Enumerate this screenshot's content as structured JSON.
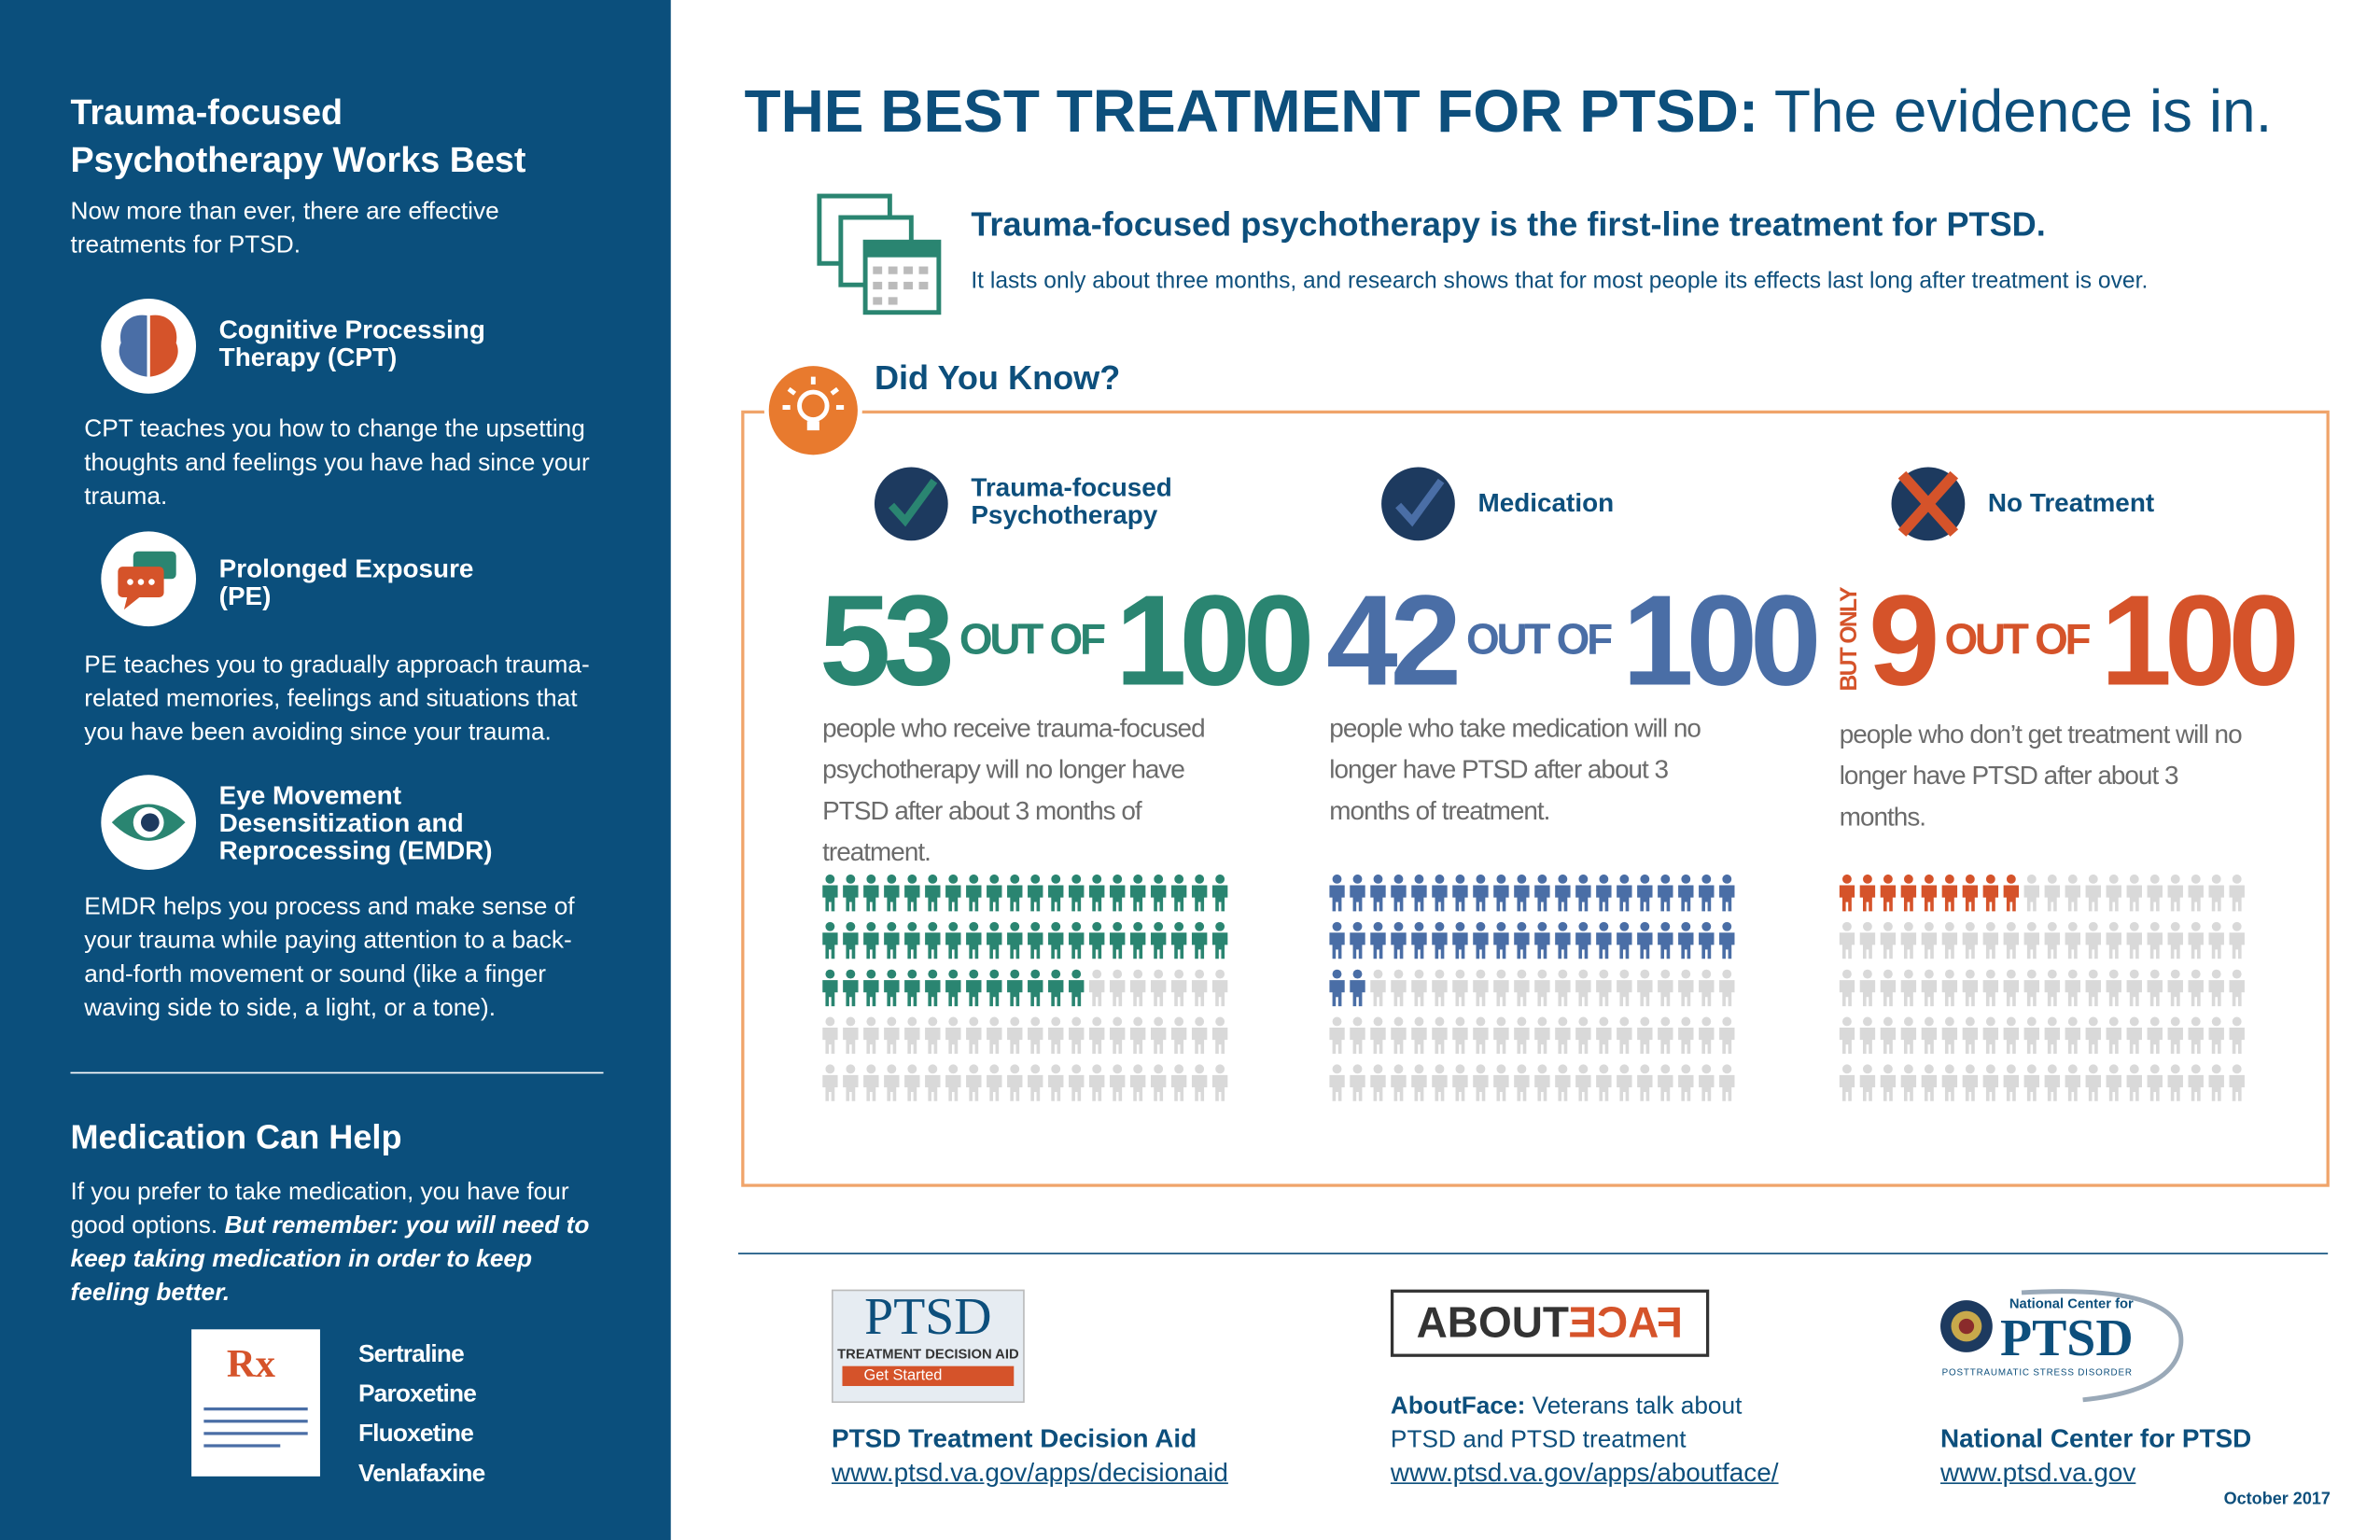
{
  "sidebar": {
    "title": "Trauma-focused Psychotherapy Works Best",
    "intro": "Now more than ever, there are effective treatments for PTSD.",
    "therapies": [
      {
        "name": "Cognitive Processing Therapy (CPT)",
        "description": "CPT teaches you how to change the upsetting thoughts and feelings you have had since your trauma."
      },
      {
        "name": "Prolonged Exposure (PE)",
        "description": "PE teaches you to gradually approach trauma-related memories, feelings and situations that you have been avoiding since your trauma."
      },
      {
        "name": "Eye Movement Desensitization and Reprocessing (EMDR)",
        "description": "EMDR helps you process and make sense of your trauma while paying attention to a back-and-forth movement or sound (like a finger waving side to side, a light, or a tone)."
      }
    ],
    "medication": {
      "title": "Medication Can Help",
      "text": "If you prefer to take medication, you have four good options.",
      "emphasis": "But remember: you will need to keep taking medication in order to keep feeling better.",
      "icon": "Rx",
      "drugs": [
        "Sertraline",
        "Paroxetine",
        "Fluoxetine",
        "Venlafaxine"
      ]
    }
  },
  "header": {
    "title_bold": "THE BEST TREATMENT FOR PTSD:",
    "title_rest": "The evidence is in.",
    "subtitle": "Trauma-focused psychotherapy is the first-line treatment for PTSD.",
    "text": "It lasts only about three months, and research shows that for most people its effects last long after treatment is over."
  },
  "did_you_know": {
    "title": "Did You Know?",
    "stats": [
      {
        "label": "Trauma-focused Psychotherapy",
        "value": 53,
        "out_of": "OUT OF",
        "total": 100,
        "color": "#2a8571",
        "description": "people who receive trauma-focused psychotherapy will no longer have PTSD after about 3 months of treatment."
      },
      {
        "label": "Medication",
        "value": 42,
        "out_of": "OUT OF",
        "total": 100,
        "color": "#4a6ea6",
        "description": "people who take medication will no longer have PTSD after about 3 months of treatment."
      },
      {
        "label": "No Treatment",
        "prefix": "BUT ONLY",
        "value": 9,
        "out_of": "OUT OF",
        "total": 100,
        "color": "#d5532a",
        "description": "people who don’t get treatment will no longer have PTSD after about 3 months."
      }
    ]
  },
  "footer": {
    "resources": [
      {
        "logo": "PTSD",
        "logo_sub": "TREATMENT DECISION AID",
        "button": "Get Started",
        "name": "PTSD Treatment Decision Aid",
        "url": "www.ptsd.va.gov/apps/decisionaid"
      },
      {
        "logo_left": "ABOUT",
        "logo_right": "FACE",
        "name_bold": "AboutFace:",
        "name": "Veterans talk about PTSD and PTSD treatment",
        "url": "www.ptsd.va.gov/apps/aboutface/"
      },
      {
        "logo_top": "National Center for",
        "logo": "PTSD",
        "logo_sub": "POSTTRAUMATIC STRESS DISORDER",
        "name": "National Center for PTSD",
        "url": "www.ptsd.va.gov"
      }
    ],
    "date": "October 2017"
  }
}
